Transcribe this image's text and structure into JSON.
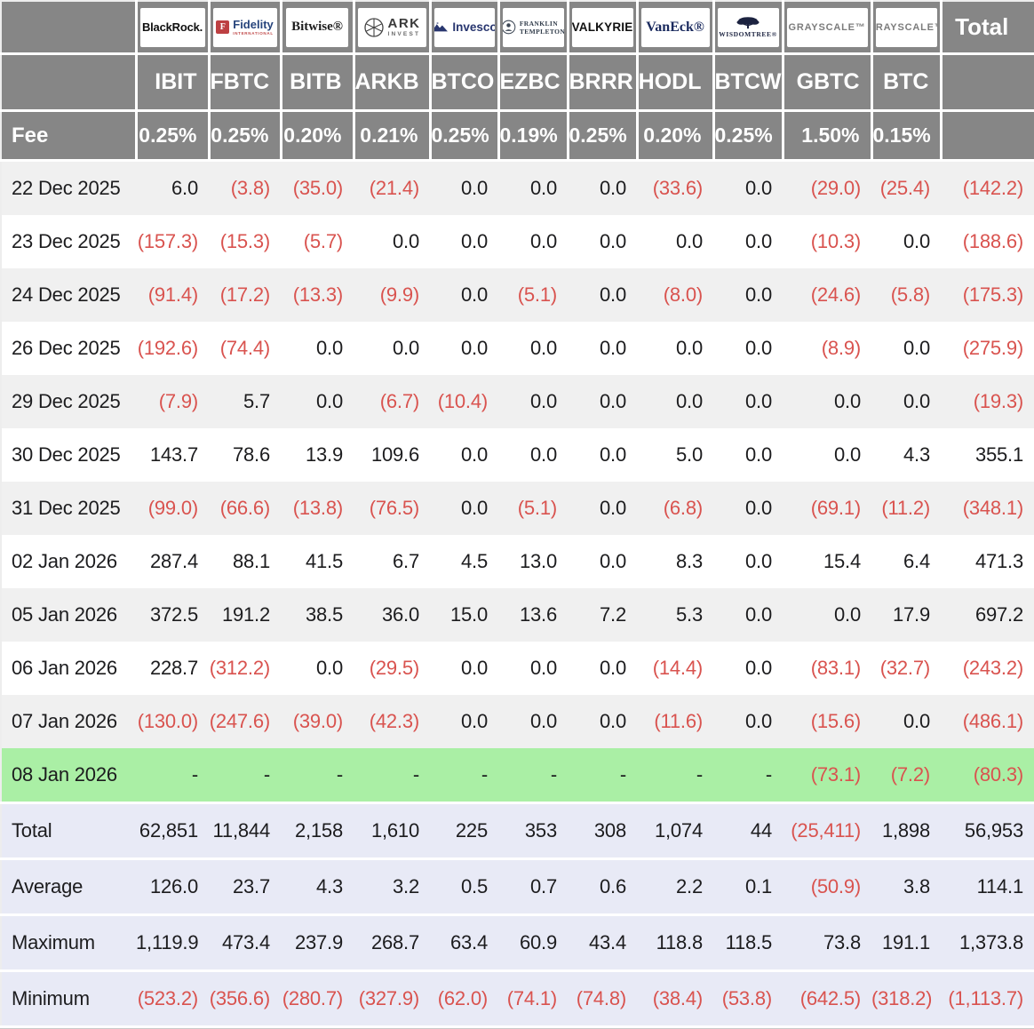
{
  "table": {
    "total_header": "Total",
    "fee_row_label": "Fee",
    "funds": [
      {
        "provider": "BlackRock",
        "ticker": "IBIT",
        "fee": "0.25%",
        "logo": {
          "type": "blackrock",
          "text": "BlackRock."
        }
      },
      {
        "provider": "Fidelity International",
        "ticker": "FBTC",
        "fee": "0.25%",
        "logo": {
          "type": "fidelity",
          "icon_letter": "F",
          "text": "Fidelity",
          "subtext": "INTERNATIONAL"
        }
      },
      {
        "provider": "Bitwise",
        "ticker": "BITB",
        "fee": "0.20%",
        "logo": {
          "type": "bitwise",
          "text": "Bitwise®"
        }
      },
      {
        "provider": "ARK Invest",
        "ticker": "ARKB",
        "fee": "0.21%",
        "logo": {
          "type": "ark",
          "line1": "ARK",
          "line2": "INVEST"
        }
      },
      {
        "provider": "Invesco",
        "ticker": "BTCO",
        "fee": "0.25%",
        "logo": {
          "type": "invesco",
          "text": "Invesco"
        }
      },
      {
        "provider": "Franklin Templeton",
        "ticker": "EZBC",
        "fee": "0.19%",
        "logo": {
          "type": "franklin",
          "line1": "FRANKLIN",
          "line2": "TEMPLETON"
        }
      },
      {
        "provider": "Valkyrie",
        "ticker": "BRRR",
        "fee": "0.25%",
        "logo": {
          "type": "valkyrie",
          "text": "VALKYRIE"
        }
      },
      {
        "provider": "VanEck",
        "ticker": "HODL",
        "fee": "0.20%",
        "logo": {
          "type": "vaneck",
          "text": "VanEck®"
        }
      },
      {
        "provider": "WisdomTree",
        "ticker": "BTCW",
        "fee": "0.25%",
        "logo": {
          "type": "wisdomtree",
          "text": "WISDOMTREE®"
        }
      },
      {
        "provider": "Grayscale",
        "ticker": "GBTC",
        "fee": "1.50%",
        "logo": {
          "type": "grayscale",
          "text": "GRAYSCALE™"
        }
      },
      {
        "provider": "Grayscale",
        "ticker": "BTC",
        "fee": "0.15%",
        "logo": {
          "type": "grayscale",
          "text": "GRAYSCALE™"
        }
      }
    ],
    "rows": [
      {
        "date": "22 Dec 2025",
        "highlight": false,
        "values": [
          "6.0",
          "(3.8)",
          "(35.0)",
          "(21.4)",
          "0.0",
          "0.0",
          "0.0",
          "(33.6)",
          "0.0",
          "(29.0)",
          "(25.4)",
          "(142.2)"
        ]
      },
      {
        "date": "23 Dec 2025",
        "highlight": false,
        "values": [
          "(157.3)",
          "(15.3)",
          "(5.7)",
          "0.0",
          "0.0",
          "0.0",
          "0.0",
          "0.0",
          "0.0",
          "(10.3)",
          "0.0",
          "(188.6)"
        ]
      },
      {
        "date": "24 Dec 2025",
        "highlight": false,
        "values": [
          "(91.4)",
          "(17.2)",
          "(13.3)",
          "(9.9)",
          "0.0",
          "(5.1)",
          "0.0",
          "(8.0)",
          "0.0",
          "(24.6)",
          "(5.8)",
          "(175.3)"
        ]
      },
      {
        "date": "26 Dec 2025",
        "highlight": false,
        "values": [
          "(192.6)",
          "(74.4)",
          "0.0",
          "0.0",
          "0.0",
          "0.0",
          "0.0",
          "0.0",
          "0.0",
          "(8.9)",
          "0.0",
          "(275.9)"
        ]
      },
      {
        "date": "29 Dec 2025",
        "highlight": false,
        "values": [
          "(7.9)",
          "5.7",
          "0.0",
          "(6.7)",
          "(10.4)",
          "0.0",
          "0.0",
          "0.0",
          "0.0",
          "0.0",
          "0.0",
          "(19.3)"
        ]
      },
      {
        "date": "30 Dec 2025",
        "highlight": false,
        "values": [
          "143.7",
          "78.6",
          "13.9",
          "109.6",
          "0.0",
          "0.0",
          "0.0",
          "5.0",
          "0.0",
          "0.0",
          "4.3",
          "355.1"
        ]
      },
      {
        "date": "31 Dec 2025",
        "highlight": false,
        "values": [
          "(99.0)",
          "(66.6)",
          "(13.8)",
          "(76.5)",
          "0.0",
          "(5.1)",
          "0.0",
          "(6.8)",
          "0.0",
          "(69.1)",
          "(11.2)",
          "(348.1)"
        ]
      },
      {
        "date": "02 Jan 2026",
        "highlight": false,
        "values": [
          "287.4",
          "88.1",
          "41.5",
          "6.7",
          "4.5",
          "13.0",
          "0.0",
          "8.3",
          "0.0",
          "15.4",
          "6.4",
          "471.3"
        ]
      },
      {
        "date": "05 Jan 2026",
        "highlight": false,
        "values": [
          "372.5",
          "191.2",
          "38.5",
          "36.0",
          "15.0",
          "13.6",
          "7.2",
          "5.3",
          "0.0",
          "0.0",
          "17.9",
          "697.2"
        ]
      },
      {
        "date": "06 Jan 2026",
        "highlight": false,
        "values": [
          "228.7",
          "(312.2)",
          "0.0",
          "(29.5)",
          "0.0",
          "0.0",
          "0.0",
          "(14.4)",
          "0.0",
          "(83.1)",
          "(32.7)",
          "(243.2)"
        ]
      },
      {
        "date": "07 Jan 2026",
        "highlight": false,
        "values": [
          "(130.0)",
          "(247.6)",
          "(39.0)",
          "(42.3)",
          "0.0",
          "0.0",
          "0.0",
          "(11.6)",
          "0.0",
          "(15.6)",
          "0.0",
          "(486.1)"
        ]
      },
      {
        "date": "08 Jan 2026",
        "highlight": true,
        "values": [
          "-",
          "-",
          "-",
          "-",
          "-",
          "-",
          "-",
          "-",
          "-",
          "(73.1)",
          "(7.2)",
          "(80.3)"
        ]
      }
    ],
    "summary_rows": [
      {
        "label": "Total",
        "values": [
          "62,851",
          "11,844",
          "2,158",
          "1,610",
          "225",
          "353",
          "308",
          "1,074",
          "44",
          "(25,411)",
          "1,898",
          "56,953"
        ]
      },
      {
        "label": "Average",
        "values": [
          "126.0",
          "23.7",
          "4.3",
          "3.2",
          "0.5",
          "0.7",
          "0.6",
          "2.2",
          "0.1",
          "(50.9)",
          "3.8",
          "114.1"
        ]
      },
      {
        "label": "Maximum",
        "values": [
          "1,119.9",
          "473.4",
          "237.9",
          "268.7",
          "63.4",
          "60.9",
          "43.4",
          "118.8",
          "118.5",
          "73.8",
          "191.1",
          "1,373.8"
        ]
      },
      {
        "label": "Minimum",
        "values": [
          "(523.2)",
          "(356.6)",
          "(280.7)",
          "(327.9)",
          "(62.0)",
          "(74.1)",
          "(74.8)",
          "(38.4)",
          "(53.8)",
          "(642.5)",
          "(318.2)",
          "(1,113.7)"
        ]
      }
    ],
    "colors": {
      "header_bg": "#868686",
      "band_bg": "#f0f0f0",
      "highlight_bg": "#aaefa5",
      "summary_bg": "#e8eaf6",
      "negative_text": "#d9534f"
    }
  }
}
